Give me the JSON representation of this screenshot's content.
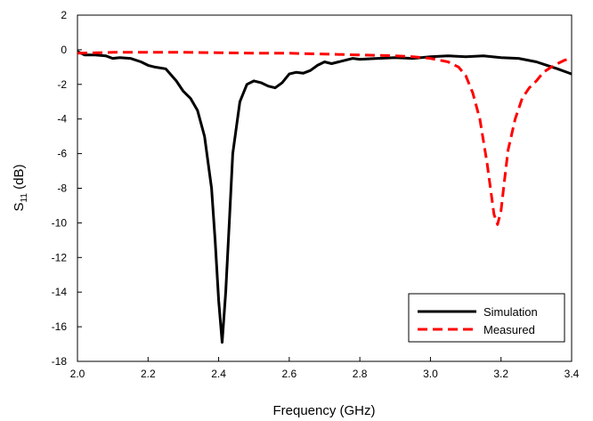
{
  "chart_data": {
    "type": "line",
    "xlabel": "Frequency (GHz)",
    "ylabel": {
      "base": "S",
      "sub": "11",
      "rest": " (dB)"
    },
    "xlim": [
      2.0,
      3.4
    ],
    "ylim": [
      -18,
      2
    ],
    "x_ticks": [
      "2.0",
      "2.2",
      "2.4",
      "2.6",
      "2.8",
      "3.0",
      "3.2",
      "3.4"
    ],
    "y_ticks": [
      "2",
      "0",
      "-2",
      "-4",
      "-6",
      "-8",
      "-10",
      "-12",
      "-14",
      "-16",
      "-18"
    ],
    "grid": false,
    "legend_position": "bottom-right",
    "series": [
      {
        "name": "Simulation",
        "color": "#000000",
        "style": "solid",
        "points": [
          [
            2.0,
            -0.1
          ],
          [
            2.02,
            -0.3
          ],
          [
            2.05,
            -0.3
          ],
          [
            2.08,
            -0.35
          ],
          [
            2.1,
            -0.5
          ],
          [
            2.12,
            -0.45
          ],
          [
            2.15,
            -0.5
          ],
          [
            2.18,
            -0.7
          ],
          [
            2.2,
            -0.9
          ],
          [
            2.22,
            -1.0
          ],
          [
            2.25,
            -1.1
          ],
          [
            2.28,
            -1.8
          ],
          [
            2.3,
            -2.4
          ],
          [
            2.32,
            -2.8
          ],
          [
            2.34,
            -3.5
          ],
          [
            2.36,
            -5.0
          ],
          [
            2.38,
            -8.0
          ],
          [
            2.39,
            -11.0
          ],
          [
            2.4,
            -14.5
          ],
          [
            2.41,
            -16.9
          ],
          [
            2.42,
            -14.0
          ],
          [
            2.43,
            -10.0
          ],
          [
            2.44,
            -6.0
          ],
          [
            2.46,
            -3.0
          ],
          [
            2.48,
            -2.0
          ],
          [
            2.5,
            -1.8
          ],
          [
            2.52,
            -1.9
          ],
          [
            2.54,
            -2.1
          ],
          [
            2.56,
            -2.2
          ],
          [
            2.58,
            -1.9
          ],
          [
            2.6,
            -1.4
          ],
          [
            2.62,
            -1.3
          ],
          [
            2.64,
            -1.35
          ],
          [
            2.66,
            -1.2
          ],
          [
            2.68,
            -0.9
          ],
          [
            2.7,
            -0.7
          ],
          [
            2.72,
            -0.8
          ],
          [
            2.74,
            -0.7
          ],
          [
            2.76,
            -0.6
          ],
          [
            2.78,
            -0.5
          ],
          [
            2.8,
            -0.55
          ],
          [
            2.85,
            -0.5
          ],
          [
            2.9,
            -0.45
          ],
          [
            2.95,
            -0.5
          ],
          [
            3.0,
            -0.4
          ],
          [
            3.05,
            -0.35
          ],
          [
            3.1,
            -0.4
          ],
          [
            3.15,
            -0.35
          ],
          [
            3.2,
            -0.45
          ],
          [
            3.25,
            -0.5
          ],
          [
            3.3,
            -0.7
          ],
          [
            3.33,
            -0.9
          ],
          [
            3.36,
            -1.1
          ],
          [
            3.4,
            -1.4
          ]
        ]
      },
      {
        "name": "Measured",
        "color": "#ff0000",
        "style": "dashed",
        "points": [
          [
            2.0,
            -0.2
          ],
          [
            2.1,
            -0.15
          ],
          [
            2.2,
            -0.15
          ],
          [
            2.3,
            -0.15
          ],
          [
            2.4,
            -0.17
          ],
          [
            2.5,
            -0.2
          ],
          [
            2.6,
            -0.2
          ],
          [
            2.7,
            -0.25
          ],
          [
            2.8,
            -0.3
          ],
          [
            2.9,
            -0.35
          ],
          [
            2.95,
            -0.4
          ],
          [
            3.0,
            -0.5
          ],
          [
            3.05,
            -0.7
          ],
          [
            3.08,
            -1.0
          ],
          [
            3.1,
            -1.5
          ],
          [
            3.12,
            -2.5
          ],
          [
            3.14,
            -4.0
          ],
          [
            3.16,
            -6.5
          ],
          [
            3.18,
            -9.5
          ],
          [
            3.19,
            -10.1
          ],
          [
            3.2,
            -9.3
          ],
          [
            3.21,
            -7.5
          ],
          [
            3.22,
            -5.8
          ],
          [
            3.24,
            -4.0
          ],
          [
            3.26,
            -2.8
          ],
          [
            3.28,
            -2.2
          ],
          [
            3.3,
            -1.8
          ],
          [
            3.32,
            -1.3
          ],
          [
            3.35,
            -0.9
          ],
          [
            3.38,
            -0.6
          ],
          [
            3.4,
            -0.5
          ]
        ]
      }
    ]
  }
}
